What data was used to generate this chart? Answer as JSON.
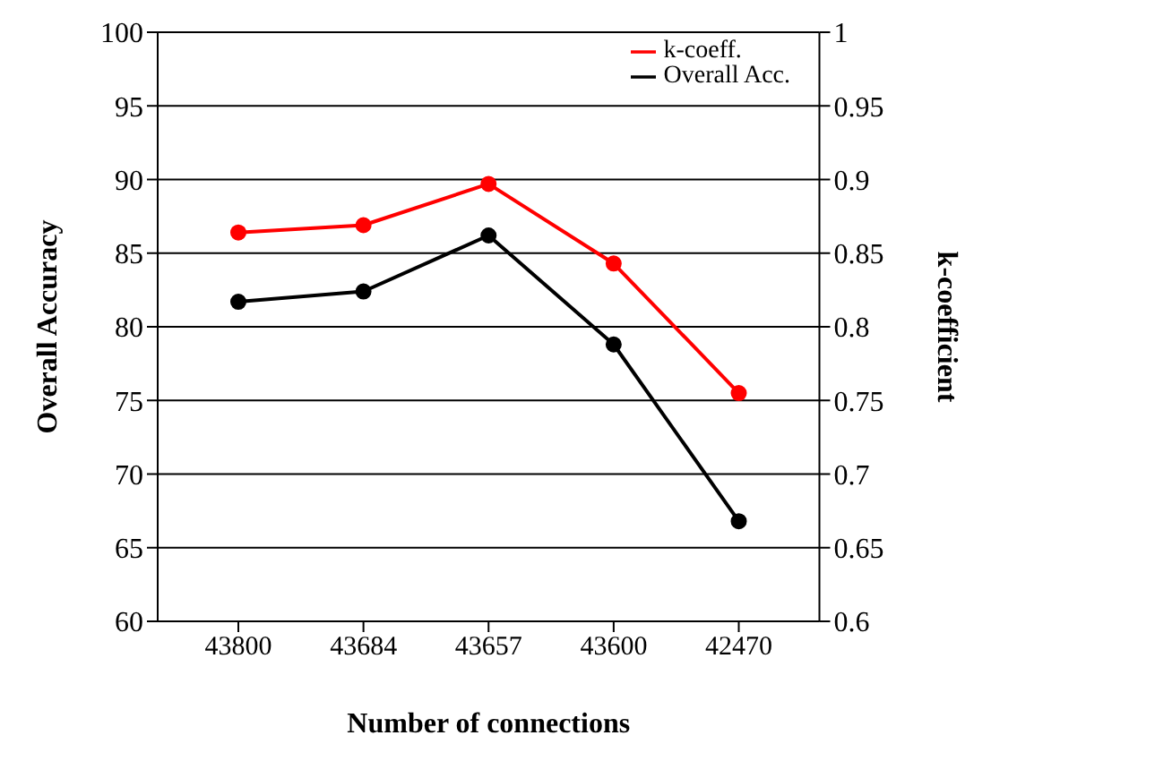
{
  "chart_data": {
    "type": "line",
    "xlabel": "Number of connections",
    "ylabel": "Overall Accuracy",
    "y2label": "k-coefficient",
    "categories": [
      "43800",
      "43684",
      "43657",
      "43600",
      "42470"
    ],
    "series": [
      {
        "name": "k-coeff.",
        "color": "#ff0000",
        "values": [
          0.864,
          0.869,
          0.897,
          0.843,
          0.755
        ],
        "axis": "y2"
      },
      {
        "name": "Overall Acc.",
        "color": "#000000",
        "values": [
          81.7,
          82.4,
          86.2,
          78.8,
          66.8
        ]
      }
    ],
    "ylim": [
      60,
      100
    ],
    "yticks": [
      60,
      65,
      70,
      75,
      80,
      85,
      90,
      95,
      100
    ],
    "y2lim": [
      0.6,
      1
    ],
    "y2ticks": [
      0.6,
      0.65,
      0.7,
      0.75,
      0.8,
      0.85,
      0.9,
      0.95,
      1
    ],
    "grid": "y",
    "legend": "top right",
    "marker": "circle",
    "line_style": "solid"
  }
}
